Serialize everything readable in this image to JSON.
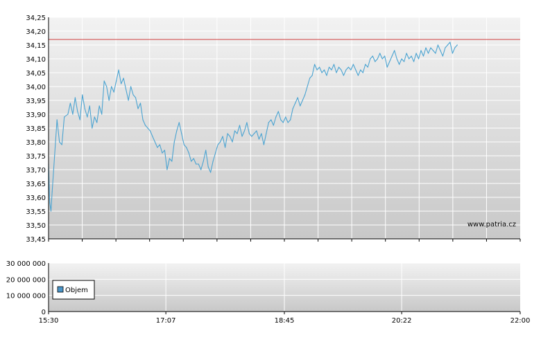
{
  "watermark": "www.patria.cz",
  "colors": {
    "line": "#4aa3d1",
    "reference": "#d04040",
    "legend_swatch": "#4a95c8",
    "grid": "#ffffff",
    "bg_top": "#f2f2f2",
    "bg_bottom": "#c8c8c8"
  },
  "chart_data": [
    {
      "type": "line",
      "title": "",
      "xlabel": "",
      "ylabel": "",
      "ylim": [
        33.45,
        34.25
      ],
      "yticks": [
        "34,25",
        "34,20",
        "34,15",
        "34,10",
        "34,05",
        "34,00",
        "33,95",
        "33,90",
        "33,85",
        "33,80",
        "33,75",
        "33,70",
        "33,65",
        "33,60",
        "33,55",
        "33,50",
        "33,45"
      ],
      "reference_line": 34.17,
      "grid": true,
      "series": [
        {
          "points": [
            [
              "15:30",
              33.72
            ],
            [
              "15:31",
              33.58
            ],
            [
              "15:32",
              33.55
            ],
            [
              "15:33",
              33.62
            ],
            [
              "15:35",
              33.75
            ],
            [
              "15:37",
              33.88
            ],
            [
              "15:39",
              33.8
            ],
            [
              "15:41",
              33.79
            ],
            [
              "15:43",
              33.89
            ],
            [
              "15:46",
              33.9
            ],
            [
              "15:48",
              33.94
            ],
            [
              "15:50",
              33.9
            ],
            [
              "15:52",
              33.96
            ],
            [
              "15:54",
              33.91
            ],
            [
              "15:56",
              33.88
            ],
            [
              "15:58",
              33.97
            ],
            [
              "16:00",
              33.92
            ],
            [
              "16:02",
              33.89
            ],
            [
              "16:04",
              33.93
            ],
            [
              "16:06",
              33.85
            ],
            [
              "16:08",
              33.89
            ],
            [
              "16:10",
              33.87
            ],
            [
              "16:12",
              33.93
            ],
            [
              "16:14",
              33.9
            ],
            [
              "16:16",
              34.02
            ],
            [
              "16:18",
              34.0
            ],
            [
              "16:20",
              33.95
            ],
            [
              "16:22",
              34.0
            ],
            [
              "16:24",
              33.98
            ],
            [
              "16:26",
              34.02
            ],
            [
              "16:28",
              34.06
            ],
            [
              "16:30",
              34.01
            ],
            [
              "16:32",
              34.03
            ],
            [
              "16:34",
              33.99
            ],
            [
              "16:36",
              33.95
            ],
            [
              "16:38",
              34.0
            ],
            [
              "16:40",
              33.97
            ],
            [
              "16:42",
              33.96
            ],
            [
              "16:44",
              33.92
            ],
            [
              "16:46",
              33.94
            ],
            [
              "16:48",
              33.88
            ],
            [
              "16:50",
              33.86
            ],
            [
              "16:52",
              33.85
            ],
            [
              "16:54",
              33.84
            ],
            [
              "16:56",
              33.82
            ],
            [
              "16:58",
              33.8
            ],
            [
              "17:00",
              33.78
            ],
            [
              "17:02",
              33.79
            ],
            [
              "17:04",
              33.76
            ],
            [
              "17:06",
              33.77
            ],
            [
              "17:08",
              33.7
            ],
            [
              "17:10",
              33.74
            ],
            [
              "17:12",
              33.73
            ],
            [
              "17:14",
              33.8
            ],
            [
              "17:16",
              33.84
            ],
            [
              "17:18",
              33.87
            ],
            [
              "17:20",
              33.83
            ],
            [
              "17:22",
              33.79
            ],
            [
              "17:24",
              33.78
            ],
            [
              "17:26",
              33.76
            ],
            [
              "17:28",
              33.73
            ],
            [
              "17:30",
              33.74
            ],
            [
              "17:32",
              33.72
            ],
            [
              "17:34",
              33.72
            ],
            [
              "17:36",
              33.7
            ],
            [
              "17:38",
              33.73
            ],
            [
              "17:40",
              33.77
            ],
            [
              "17:42",
              33.71
            ],
            [
              "17:44",
              33.69
            ],
            [
              "17:46",
              33.73
            ],
            [
              "17:48",
              33.76
            ],
            [
              "17:50",
              33.79
            ],
            [
              "17:52",
              33.8
            ],
            [
              "17:54",
              33.82
            ],
            [
              "17:56",
              33.78
            ],
            [
              "17:58",
              33.83
            ],
            [
              "18:00",
              33.82
            ],
            [
              "18:02",
              33.8
            ],
            [
              "18:04",
              33.84
            ],
            [
              "18:06",
              33.83
            ],
            [
              "18:08",
              33.86
            ],
            [
              "18:10",
              33.82
            ],
            [
              "18:12",
              33.84
            ],
            [
              "18:14",
              33.87
            ],
            [
              "18:16",
              33.83
            ],
            [
              "18:18",
              33.82
            ],
            [
              "18:20",
              33.83
            ],
            [
              "18:22",
              33.84
            ],
            [
              "18:24",
              33.81
            ],
            [
              "18:26",
              33.83
            ],
            [
              "18:28",
              33.79
            ],
            [
              "18:30",
              33.83
            ],
            [
              "18:32",
              33.87
            ],
            [
              "18:34",
              33.88
            ],
            [
              "18:36",
              33.86
            ],
            [
              "18:38",
              33.89
            ],
            [
              "18:40",
              33.91
            ],
            [
              "18:42",
              33.88
            ],
            [
              "18:44",
              33.87
            ],
            [
              "18:46",
              33.89
            ],
            [
              "18:48",
              33.87
            ],
            [
              "18:50",
              33.88
            ],
            [
              "18:52",
              33.92
            ],
            [
              "18:54",
              33.94
            ],
            [
              "18:56",
              33.96
            ],
            [
              "18:58",
              33.93
            ],
            [
              "19:00",
              33.95
            ],
            [
              "19:02",
              33.97
            ],
            [
              "19:04",
              34.0
            ],
            [
              "19:06",
              34.03
            ],
            [
              "19:08",
              34.04
            ],
            [
              "19:10",
              34.08
            ],
            [
              "19:12",
              34.06
            ],
            [
              "19:14",
              34.07
            ],
            [
              "19:16",
              34.05
            ],
            [
              "19:18",
              34.06
            ],
            [
              "19:20",
              34.04
            ],
            [
              "19:22",
              34.07
            ],
            [
              "19:24",
              34.06
            ],
            [
              "19:26",
              34.08
            ],
            [
              "19:28",
              34.05
            ],
            [
              "19:30",
              34.07
            ],
            [
              "19:32",
              34.06
            ],
            [
              "19:34",
              34.04
            ],
            [
              "19:36",
              34.06
            ],
            [
              "19:38",
              34.07
            ],
            [
              "19:40",
              34.06
            ],
            [
              "19:42",
              34.08
            ],
            [
              "19:44",
              34.06
            ],
            [
              "19:46",
              34.04
            ],
            [
              "19:48",
              34.06
            ],
            [
              "19:50",
              34.05
            ],
            [
              "19:52",
              34.08
            ],
            [
              "19:54",
              34.07
            ],
            [
              "19:56",
              34.1
            ],
            [
              "19:58",
              34.11
            ],
            [
              "20:00",
              34.09
            ],
            [
              "20:02",
              34.1
            ],
            [
              "20:04",
              34.12
            ],
            [
              "20:06",
              34.1
            ],
            [
              "20:08",
              34.11
            ],
            [
              "20:10",
              34.07
            ],
            [
              "20:12",
              34.09
            ],
            [
              "20:14",
              34.11
            ],
            [
              "20:16",
              34.13
            ],
            [
              "20:18",
              34.1
            ],
            [
              "20:20",
              34.08
            ],
            [
              "20:22",
              34.1
            ],
            [
              "20:24",
              34.09
            ],
            [
              "20:26",
              34.12
            ],
            [
              "20:28",
              34.1
            ],
            [
              "20:30",
              34.11
            ],
            [
              "20:32",
              34.09
            ],
            [
              "20:34",
              34.12
            ],
            [
              "20:36",
              34.1
            ],
            [
              "20:38",
              34.13
            ],
            [
              "20:40",
              34.11
            ],
            [
              "20:42",
              34.14
            ],
            [
              "20:44",
              34.12
            ],
            [
              "20:46",
              34.14
            ],
            [
              "20:48",
              34.13
            ],
            [
              "20:50",
              34.12
            ],
            [
              "20:52",
              34.15
            ],
            [
              "20:54",
              34.13
            ],
            [
              "20:56",
              34.11
            ],
            [
              "20:58",
              34.14
            ],
            [
              "21:00",
              34.15
            ],
            [
              "21:02",
              34.16
            ],
            [
              "21:04",
              34.12
            ],
            [
              "21:06",
              34.14
            ],
            [
              "21:08",
              34.15
            ]
          ]
        }
      ],
      "x_ticks": [
        "15:30",
        "17:07",
        "18:45",
        "20:22",
        "22:00"
      ]
    },
    {
      "type": "bar",
      "title": "",
      "xlabel": "",
      "ylabel": "",
      "ylim": [
        0,
        30000000
      ],
      "yticks": [
        "30 000 000",
        "20 000 000",
        "10 000 000",
        "0"
      ],
      "x_ticks": [
        "15:30",
        "17:07",
        "18:45",
        "20:22",
        "22:00"
      ],
      "legend": {
        "position": "left",
        "entries": [
          "Objem"
        ]
      },
      "grid": true
    }
  ]
}
